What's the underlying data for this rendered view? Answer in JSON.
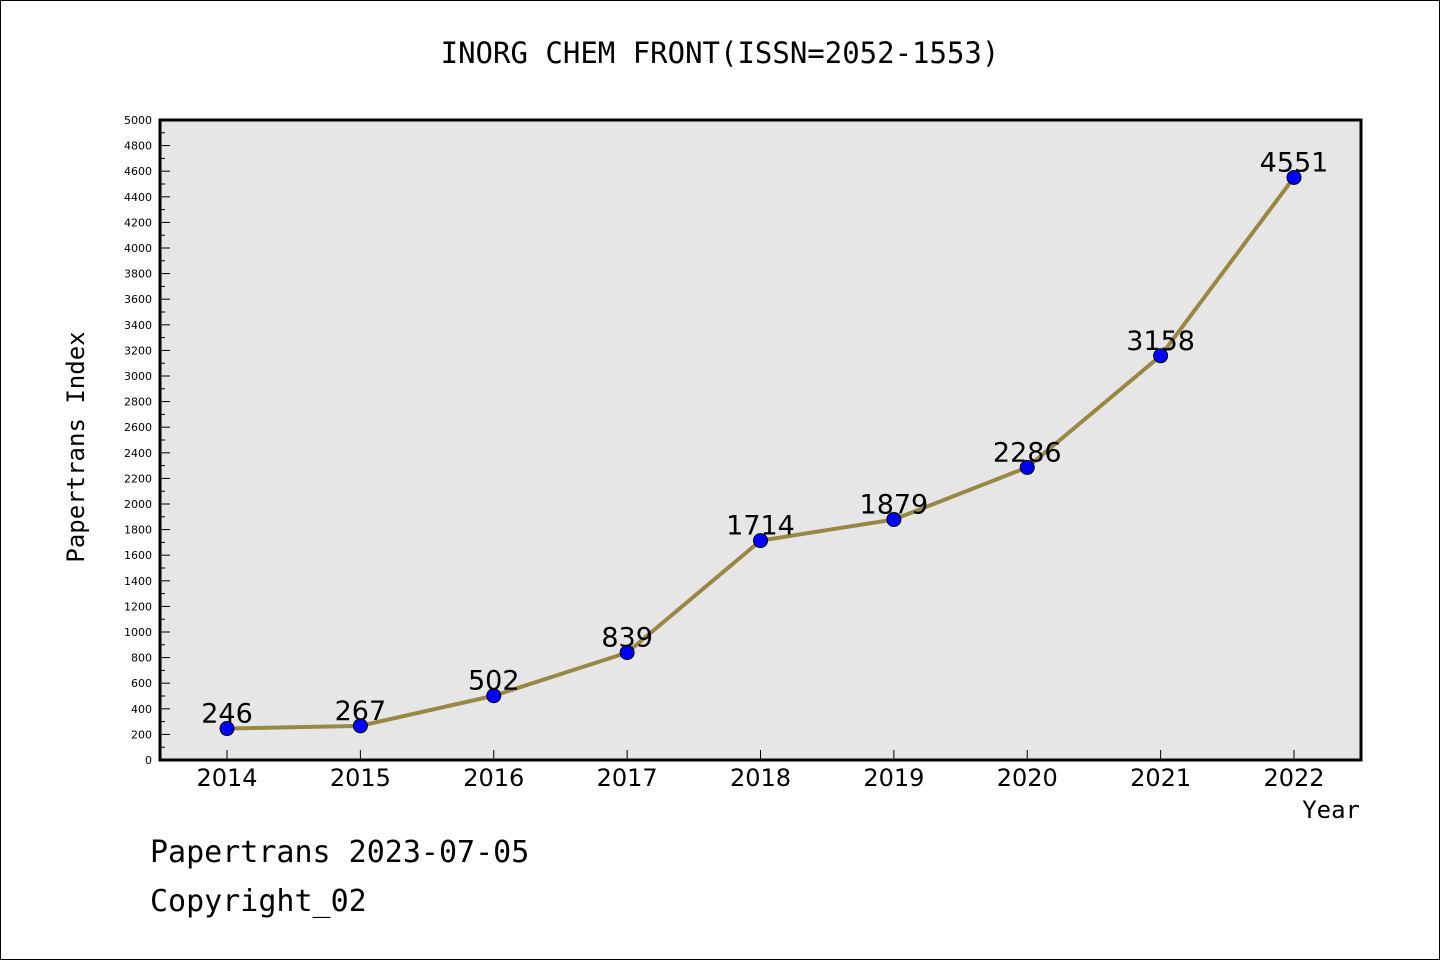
{
  "chart_data": {
    "type": "line",
    "title": "INORG CHEM FRONT(ISSN=2052-1553)",
    "xlabel": "Year",
    "ylabel": "Papertrans Index",
    "categories": [
      "2014",
      "2015",
      "2016",
      "2017",
      "2018",
      "2019",
      "2020",
      "2021",
      "2022"
    ],
    "series": [
      {
        "values": [
          246,
          267,
          502,
          839,
          1714,
          1879,
          2286,
          3158,
          4551
        ],
        "data_labels": [
          "246",
          "267",
          "502",
          "839",
          "1714",
          "1879",
          "2286",
          "3158",
          "4551"
        ]
      }
    ],
    "ylim": [
      0,
      5000
    ],
    "yticks": [
      "0",
      "200",
      "400",
      "600",
      "800",
      "1000",
      "1200",
      "1400",
      "1600",
      "1800",
      "2000",
      "2200",
      "2400",
      "2600",
      "2800",
      "3000",
      "3200",
      "3400",
      "3600",
      "3800",
      "4000",
      "4200",
      "4400",
      "4600",
      "4800",
      "5000"
    ],
    "grid": false,
    "legend": "none",
    "colors": {
      "line": "#998844",
      "marker": "#0000ff",
      "plot_background": "#e6e6e6",
      "frame": "#000000"
    }
  },
  "footer": {
    "date_text": "Papertrans 2023-07-05",
    "copyright_text": "Copyright_02"
  }
}
